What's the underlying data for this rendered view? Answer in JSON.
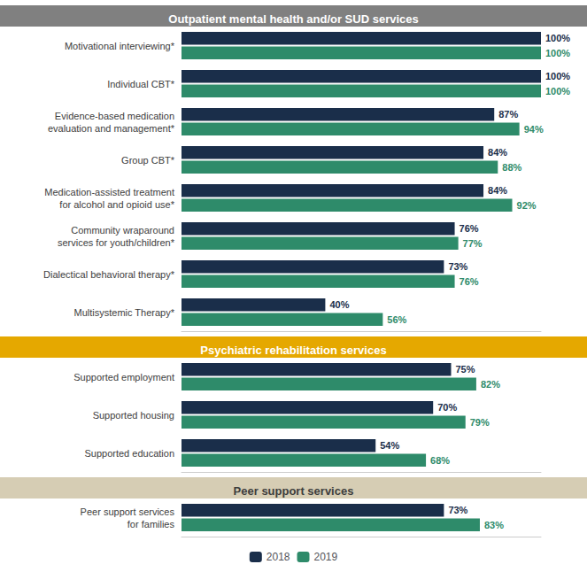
{
  "chart_data": [
    {
      "type": "bar",
      "orientation": "horizontal",
      "title": "Outpatient mental health and/or SUD services",
      "categories": [
        "Motivational interviewing*",
        "Individual CBT*",
        "Evidence-based medication\nevaluation and management*",
        "Group CBT*",
        "Medication-assisted treatment\nfor alcohol and opioid use*",
        "Community wraparound\nservices for youth/children*",
        "Dialectical behavioral therapy*",
        "Multisystemic Therapy*"
      ],
      "series": [
        {
          "name": "2018",
          "color": "#1a2e4a",
          "values": [
            100,
            100,
            87,
            84,
            84,
            76,
            73,
            40
          ],
          "value_labels": [
            "100%",
            "100%",
            "87%",
            "84%",
            "84%",
            "76%",
            "73%",
            "40%"
          ]
        },
        {
          "name": "2019",
          "color": "#2e8b6a",
          "values": [
            100,
            100,
            94,
            88,
            92,
            77,
            76,
            56
          ],
          "value_labels": [
            "100%",
            "100%",
            "94%",
            "88%",
            "92%",
            "77%",
            "76%",
            "56%"
          ]
        }
      ],
      "xlim": [
        0,
        100
      ],
      "grid": false,
      "data_labels": true,
      "tick_labels": "y"
    },
    {
      "type": "bar",
      "orientation": "horizontal",
      "title": "Psychiatric rehabilitation services",
      "categories": [
        "Supported employment",
        "Supported housing",
        "Supported education"
      ],
      "series": [
        {
          "name": "2018",
          "color": "#1a2e4a",
          "values": [
            75,
            70,
            54
          ],
          "value_labels": [
            "75%",
            "70%",
            "54%"
          ]
        },
        {
          "name": "2019",
          "color": "#2e8b6a",
          "values": [
            82,
            79,
            68
          ],
          "value_labels": [
            "82%",
            "79%",
            "68%"
          ]
        }
      ],
      "xlim": [
        0,
        100
      ],
      "grid": false,
      "data_labels": true,
      "tick_labels": "y"
    },
    {
      "type": "bar",
      "orientation": "horizontal",
      "title": "Peer support services",
      "categories": [
        "Peer support services\nfor families"
      ],
      "series": [
        {
          "name": "2018",
          "color": "#1a2e4a",
          "values": [
            73
          ],
          "value_labels": [
            "73%"
          ]
        },
        {
          "name": "2019",
          "color": "#2e8b6a",
          "values": [
            83
          ],
          "value_labels": [
            "83%"
          ]
        }
      ],
      "xlim": [
        0,
        100
      ],
      "grid": false,
      "data_labels": true,
      "tick_labels": "y",
      "legend": "bottom"
    }
  ]
}
